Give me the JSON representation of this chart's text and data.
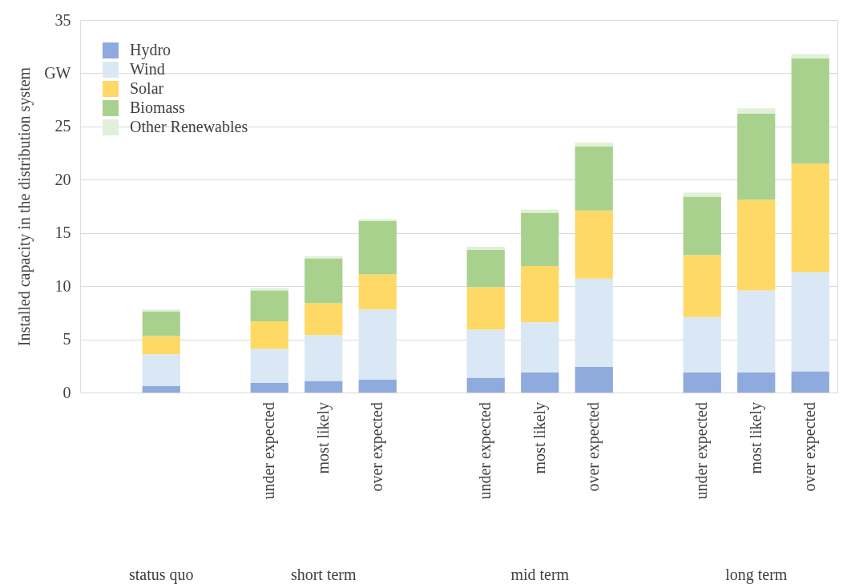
{
  "chart_data": {
    "type": "bar",
    "stacked": true,
    "ylabel": "Installed capacity in the distribution system",
    "categories": [
      null,
      null,
      null,
      "under expected",
      "most likely",
      "over expected",
      null,
      "under expected",
      "most likely",
      "over expected",
      null,
      "under expected",
      "most likely",
      "over expected"
    ],
    "series": [
      {
        "name": "Hydro",
        "color": "#8faadc",
        "values": [
          null,
          0.6,
          null,
          0.9,
          1.1,
          1.2,
          null,
          1.4,
          1.9,
          2.4,
          null,
          1.9,
          1.9,
          2.0
        ]
      },
      {
        "name": "Wind",
        "color": "#dae8f5",
        "values": [
          null,
          3.0,
          null,
          3.2,
          4.3,
          6.6,
          null,
          4.5,
          4.7,
          8.3,
          null,
          5.2,
          7.7,
          9.3
        ]
      },
      {
        "name": "Solar",
        "color": "#ffd966",
        "values": [
          null,
          1.7,
          null,
          2.6,
          3.0,
          3.3,
          null,
          4.0,
          5.3,
          6.4,
          null,
          5.8,
          8.5,
          10.2
        ]
      },
      {
        "name": "Biomass",
        "color": "#a9d18e",
        "values": [
          null,
          2.3,
          null,
          2.9,
          4.2,
          5.0,
          null,
          3.5,
          5.0,
          6.0,
          null,
          5.5,
          8.1,
          9.9
        ]
      },
      {
        "name": "Other Renewables",
        "color": "#e2f0d9",
        "values": [
          null,
          0.2,
          null,
          0.2,
          0.2,
          0.2,
          null,
          0.3,
          0.3,
          0.4,
          null,
          0.4,
          0.5,
          0.4
        ]
      }
    ],
    "annotations": [
      "status quo",
      "short term",
      "mid term",
      "long term"
    ],
    "ylim": [
      0,
      35
    ],
    "yticks": [
      0,
      5,
      10,
      15,
      20,
      25,
      {
        "value": 30,
        "label": "GW"
      },
      35
    ],
    "grid": "y",
    "legend": "top left"
  }
}
